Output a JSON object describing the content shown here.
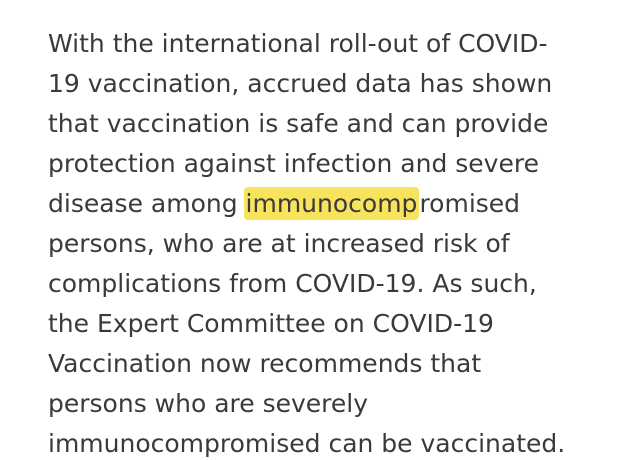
{
  "paragraph": {
    "line1": "With the international roll-out of COVID-",
    "line2": "19 vaccination, accrued data has shown",
    "line3": "that vaccination is safe and can provide",
    "line4": "protection against infection and severe",
    "line5_before": "disease among ",
    "line5_highlight": "immunocomp",
    "line5_after": "romised",
    "line6": "persons, who are at increased risk of",
    "line7": "complications from COVID-19. As such,",
    "line8": "the Expert Committee on COVID-19",
    "line9": "Vaccination now recommends that",
    "line10": "persons who are severely",
    "line11": "immunocompromised can be vaccinated."
  },
  "colors": {
    "text": "#3a3a3a",
    "highlight": "#f8e45c",
    "background": "#ffffff"
  }
}
